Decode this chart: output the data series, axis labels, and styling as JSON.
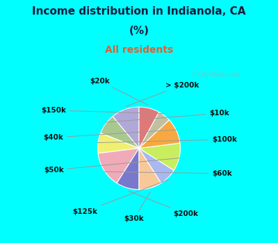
{
  "title_line1": "Income distribution in Indianola, CA",
  "title_line2": "(%)",
  "subtitle": "All residents",
  "bg_color": "#00ffff",
  "panel_color": "#d8f0e4",
  "title_color": "#1a1a3a",
  "subtitle_color": "#e06030",
  "watermark": "City-Data.com",
  "labels": [
    "> $200k",
    "$10k",
    "$100k",
    "$60k",
    "$200k",
    "$30k",
    "$125k",
    "$50k",
    "$40k",
    "$150k",
    "$20k"
  ],
  "values": [
    11,
    8,
    8,
    14,
    9,
    9,
    7,
    11,
    10,
    5,
    8
  ],
  "colors": [
    "#b0a8d8",
    "#a8c890",
    "#f0f070",
    "#f0aab8",
    "#7878cc",
    "#f8c898",
    "#a8b8f0",
    "#c8ee60",
    "#f8a840",
    "#c0c0a0",
    "#e07878"
  ],
  "startangle": 90,
  "label_fontsize": 7.5,
  "title_fontsize": 11,
  "subtitle_fontsize": 10
}
